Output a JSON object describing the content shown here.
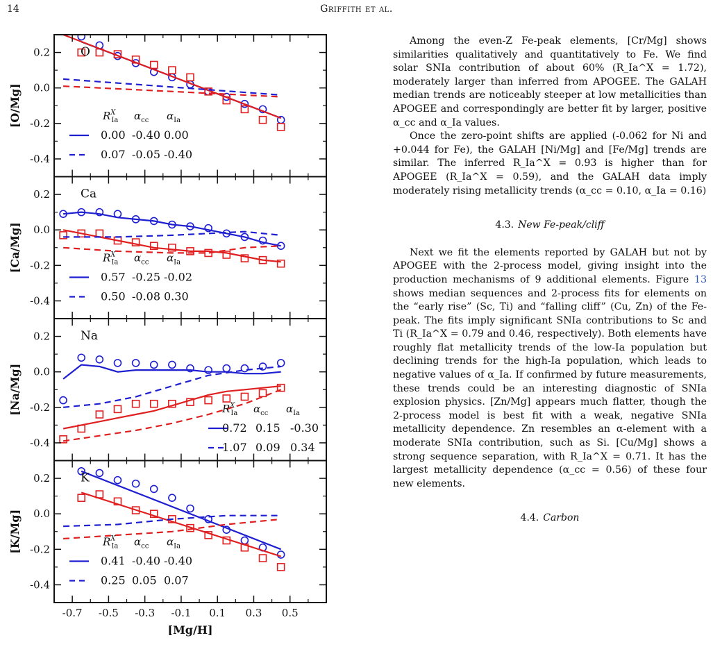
{
  "page": {
    "number": "14",
    "running_head": "Griffith et al."
  },
  "figure": {
    "x_label": "[Mg/H]",
    "x_ticks": [
      "-0.7",
      "-0.5",
      "-0.3",
      "-0.1",
      "0.1",
      "0.3",
      "0.5"
    ],
    "y_ticks": [
      "0.2",
      "0.0",
      "-0.2",
      "-0.4"
    ],
    "legend_header": {
      "r": "R",
      "r_sub": "Ia",
      "r_sup": "X",
      "acc": "α",
      "acc_sub": "cc",
      "aia": "α",
      "aia_sub": "Ia"
    },
    "colors": {
      "high_ia": "#1f1fd2",
      "low_ia": "#e02020"
    }
  },
  "chart_data": [
    {
      "type": "line",
      "element": "O",
      "ylabel": "[O/Mg]",
      "xlim": [
        -0.8,
        0.7
      ],
      "ylim": [
        -0.5,
        0.3
      ],
      "legend": [
        {
          "style": "solid",
          "r": "0.00",
          "acc": "-0.40",
          "aia": "0.00"
        },
        {
          "style": "dashed",
          "r": "0.07",
          "acc": "-0.05",
          "aia": "-0.40"
        }
      ],
      "series": [
        {
          "name": "high-Ia median",
          "marker": "circle",
          "color": "blue",
          "x": [
            -0.65,
            -0.55,
            -0.45,
            -0.35,
            -0.25,
            -0.15,
            -0.05,
            0.05,
            0.15,
            0.25,
            0.35,
            0.45
          ],
          "y": [
            0.29,
            0.24,
            0.18,
            0.14,
            0.09,
            0.06,
            0.02,
            -0.02,
            -0.05,
            -0.09,
            -0.12,
            -0.18
          ]
        },
        {
          "name": "low-Ia median",
          "marker": "square",
          "color": "red",
          "x": [
            -0.65,
            -0.55,
            -0.45,
            -0.35,
            -0.25,
            -0.15,
            -0.05,
            0.05,
            0.15,
            0.25,
            0.35,
            0.45
          ],
          "y": [
            0.2,
            0.2,
            0.19,
            0.16,
            0.13,
            0.1,
            0.06,
            -0.02,
            -0.07,
            -0.12,
            -0.18,
            -0.22
          ]
        },
        {
          "name": "high-Ia fit solid",
          "line": "solid",
          "color": "blue",
          "x": [
            -0.65,
            0.45
          ],
          "y": [
            0.26,
            -0.17
          ]
        },
        {
          "name": "low-Ia fit solid",
          "line": "solid",
          "color": "red",
          "x": [
            -0.75,
            0.45
          ],
          "y": [
            0.3,
            -0.17
          ]
        },
        {
          "name": "high-Ia fit dashed",
          "line": "dashed",
          "color": "blue",
          "x": [
            -0.75,
            0.45
          ],
          "y": [
            0.05,
            -0.04
          ]
        },
        {
          "name": "low-Ia fit dashed",
          "line": "dashed",
          "color": "red",
          "x": [
            -0.75,
            0.45
          ],
          "y": [
            0.01,
            -0.05
          ]
        }
      ]
    },
    {
      "type": "line",
      "element": "Ca",
      "ylabel": "[Ca/Mg]",
      "xlim": [
        -0.8,
        0.7
      ],
      "ylim": [
        -0.5,
        0.3
      ],
      "legend": [
        {
          "style": "solid",
          "r": "0.57",
          "acc": "-0.25",
          "aia": "-0.02"
        },
        {
          "style": "dashed",
          "r": "0.50",
          "acc": "-0.08",
          "aia": "0.30"
        }
      ],
      "series": [
        {
          "name": "high-Ia median",
          "marker": "circle",
          "color": "blue",
          "x": [
            -0.75,
            -0.65,
            -0.55,
            -0.45,
            -0.35,
            -0.25,
            -0.15,
            -0.05,
            0.05,
            0.15,
            0.25,
            0.35,
            0.45
          ],
          "y": [
            0.09,
            0.1,
            0.1,
            0.09,
            0.06,
            0.05,
            0.03,
            0.02,
            0.01,
            -0.02,
            -0.04,
            -0.06,
            -0.09
          ]
        },
        {
          "name": "low-Ia median",
          "marker": "square",
          "color": "red",
          "x": [
            -0.75,
            -0.65,
            -0.55,
            -0.45,
            -0.35,
            -0.25,
            -0.15,
            -0.05,
            0.05,
            0.15,
            0.25,
            0.35,
            0.45
          ],
          "y": [
            -0.03,
            -0.02,
            -0.02,
            -0.06,
            -0.07,
            -0.09,
            -0.1,
            -0.12,
            -0.13,
            -0.14,
            -0.16,
            -0.17,
            -0.19
          ]
        },
        {
          "name": "high-Ia fit solid",
          "line": "solid",
          "color": "blue",
          "x": [
            -0.75,
            -0.65,
            -0.55,
            -0.45,
            -0.35,
            -0.25,
            -0.15,
            -0.05,
            0.05,
            0.15,
            0.25,
            0.35,
            0.45
          ],
          "y": [
            0.09,
            0.1,
            0.09,
            0.07,
            0.06,
            0.05,
            0.03,
            0.02,
            0.0,
            -0.02,
            -0.04,
            -0.07,
            -0.09
          ]
        },
        {
          "name": "low-Ia fit solid",
          "line": "solid",
          "color": "red",
          "x": [
            -0.75,
            -0.65,
            -0.55,
            -0.45,
            -0.35,
            -0.25,
            -0.15,
            -0.05,
            0.05,
            0.15,
            0.25,
            0.35,
            0.45
          ],
          "y": [
            0.0,
            -0.02,
            -0.04,
            -0.06,
            -0.08,
            -0.1,
            -0.11,
            -0.12,
            -0.12,
            -0.13,
            -0.15,
            -0.17,
            -0.18
          ]
        },
        {
          "name": "high-Ia fit dashed",
          "line": "dashed",
          "color": "blue",
          "x": [
            -0.75,
            -0.45,
            -0.15,
            0.05,
            0.25,
            0.45
          ],
          "y": [
            -0.04,
            -0.04,
            -0.03,
            -0.02,
            -0.01,
            -0.03
          ]
        },
        {
          "name": "low-Ia fit dashed",
          "line": "dashed",
          "color": "red",
          "x": [
            -0.75,
            -0.45,
            -0.15,
            0.05,
            0.25,
            0.45
          ],
          "y": [
            -0.1,
            -0.12,
            -0.13,
            -0.13,
            -0.1,
            -0.09
          ]
        }
      ]
    },
    {
      "type": "line",
      "element": "Na",
      "ylabel": "[Na/Mg]",
      "xlim": [
        -0.8,
        0.7
      ],
      "ylim": [
        -0.5,
        0.3
      ],
      "legend": [
        {
          "style": "solid",
          "r": "0.72",
          "acc": "0.15",
          "aia": "-0.30"
        },
        {
          "style": "dashed",
          "r": "1.07",
          "acc": "0.09",
          "aia": "0.34"
        }
      ],
      "series": [
        {
          "name": "high-Ia median",
          "marker": "circle",
          "color": "blue",
          "x": [
            -0.75,
            -0.65,
            -0.55,
            -0.45,
            -0.35,
            -0.25,
            -0.15,
            -0.05,
            0.05,
            0.15,
            0.25,
            0.35,
            0.45
          ],
          "y": [
            -0.16,
            0.08,
            0.07,
            0.05,
            0.05,
            0.04,
            0.04,
            0.02,
            0.01,
            0.02,
            0.02,
            0.03,
            0.05
          ]
        },
        {
          "name": "low-Ia median",
          "marker": "square",
          "color": "red",
          "x": [
            -0.75,
            -0.65,
            -0.55,
            -0.45,
            -0.35,
            -0.25,
            -0.15,
            -0.05,
            0.05,
            0.15,
            0.25,
            0.35,
            0.45
          ],
          "y": [
            -0.38,
            -0.32,
            -0.24,
            -0.21,
            -0.18,
            -0.18,
            -0.18,
            -0.17,
            -0.16,
            -0.15,
            -0.14,
            -0.12,
            -0.09
          ]
        },
        {
          "name": "high-Ia fit solid",
          "line": "solid",
          "color": "blue",
          "x": [
            -0.75,
            -0.65,
            -0.55,
            -0.45,
            -0.35,
            -0.25,
            -0.15,
            -0.05,
            0.05,
            0.15,
            0.25,
            0.35,
            0.45
          ],
          "y": [
            -0.04,
            0.04,
            0.03,
            0.0,
            0.01,
            0.01,
            0.01,
            0.01,
            0.0,
            0.0,
            -0.01,
            -0.01,
            0.0
          ]
        },
        {
          "name": "low-Ia fit solid",
          "line": "solid",
          "color": "red",
          "x": [
            -0.75,
            -0.65,
            -0.55,
            -0.45,
            -0.35,
            -0.25,
            -0.15,
            -0.05,
            0.05,
            0.15,
            0.25,
            0.35,
            0.45
          ],
          "y": [
            -0.32,
            -0.3,
            -0.28,
            -0.26,
            -0.24,
            -0.22,
            -0.19,
            -0.16,
            -0.13,
            -0.11,
            -0.1,
            -0.09,
            -0.08
          ]
        },
        {
          "name": "high-Ia fit dashed",
          "line": "dashed",
          "color": "blue",
          "x": [
            -0.75,
            -0.55,
            -0.35,
            -0.15,
            0.05,
            0.25,
            0.45
          ],
          "y": [
            -0.2,
            -0.18,
            -0.14,
            -0.08,
            -0.02,
            0.01,
            0.03
          ]
        },
        {
          "name": "low-Ia fit dashed",
          "line": "dashed",
          "color": "red",
          "x": [
            -0.75,
            -0.55,
            -0.35,
            -0.15,
            0.05,
            0.25,
            0.45
          ],
          "y": [
            -0.39,
            -0.36,
            -0.33,
            -0.29,
            -0.24,
            -0.18,
            -0.1
          ]
        }
      ]
    },
    {
      "type": "line",
      "element": "K",
      "ylabel": "[K/Mg]",
      "xlim": [
        -0.8,
        0.7
      ],
      "ylim": [
        -0.5,
        0.3
      ],
      "legend": [
        {
          "style": "solid",
          "r": "0.41",
          "acc": "-0.40",
          "aia": "-0.40"
        },
        {
          "style": "dashed",
          "r": "0.25",
          "acc": "0.05",
          "aia": "0.07"
        }
      ],
      "series": [
        {
          "name": "high-Ia median",
          "marker": "circle",
          "color": "blue",
          "x": [
            -0.65,
            -0.55,
            -0.45,
            -0.35,
            -0.25,
            -0.15,
            -0.05,
            0.05,
            0.15,
            0.25,
            0.35,
            0.45
          ],
          "y": [
            0.24,
            0.23,
            0.19,
            0.17,
            0.14,
            0.09,
            0.03,
            -0.03,
            -0.09,
            -0.15,
            -0.19,
            -0.23
          ]
        },
        {
          "name": "low-Ia median",
          "marker": "square",
          "color": "red",
          "x": [
            -0.65,
            -0.55,
            -0.45,
            -0.35,
            -0.25,
            -0.15,
            -0.05,
            0.05,
            0.15,
            0.25,
            0.35,
            0.45
          ],
          "y": [
            0.09,
            0.11,
            0.07,
            0.02,
            0.0,
            -0.03,
            -0.08,
            -0.12,
            -0.15,
            -0.19,
            -0.25,
            -0.3
          ]
        },
        {
          "name": "high-Ia fit solid",
          "line": "solid",
          "color": "blue",
          "x": [
            -0.65,
            0.45
          ],
          "y": [
            0.24,
            -0.2
          ]
        },
        {
          "name": "low-Ia fit solid",
          "line": "solid",
          "color": "red",
          "x": [
            -0.65,
            0.45
          ],
          "y": [
            0.12,
            -0.24
          ]
        },
        {
          "name": "high-Ia fit dashed",
          "line": "dashed",
          "color": "blue",
          "x": [
            -0.75,
            -0.45,
            -0.15,
            0.15,
            0.45
          ],
          "y": [
            -0.07,
            -0.06,
            -0.03,
            -0.01,
            -0.01
          ]
        },
        {
          "name": "low-Ia fit dashed",
          "line": "dashed",
          "color": "red",
          "x": [
            -0.75,
            -0.45,
            -0.15,
            0.15,
            0.45
          ],
          "y": [
            -0.14,
            -0.12,
            -0.1,
            -0.06,
            -0.03
          ]
        }
      ]
    }
  ],
  "text": {
    "p1": "Among the even-Z Fe-peak elements, [Cr/Mg] shows similarities qualitatively and quantitatively to Fe. We find solar SNIa contribution of about 60% (R_Ia^X = 1.72), moderately larger than inferred from APOGEE. The GALAH median trends are noticeably steeper at low metallicities than APOGEE and correspondingly are better fit by larger, positive α_cc and α_Ia values.",
    "p2": "Once the zero-point shifts are applied (-0.062 for Ni and +0.044 for Fe), the GALAH [Ni/Mg] and [Fe/Mg] trends are similar. The inferred R_Ia^X = 0.93 is higher than for APOGEE (R_Ia^X = 0.59), and the GALAH data imply moderately rising metallicity trends (α_cc = 0.10, α_Ia = 0.16)",
    "section_4_3_num": "4.3.",
    "section_4_3_title": "New Fe-peak/cliff",
    "p3_a": "Next we fit the elements reported by GALAH but not by APOGEE with the 2-process model, giving insight into the production mechanisms of 9 additional elements. Figure ",
    "p3_fig": "13",
    "p3_b": " shows median sequences and 2-process fits for elements on the “early rise” (Sc, Ti) and “falling cliff” (Cu, Zn) of the Fe-peak. The fits imply significant SNIa contributions to Sc and Ti (R_Ia^X = 0.79 and 0.46, respectively). Both elements have roughly flat metallicity trends of the low-Ia population but declining trends for the high-Ia population, which leads to negative values of α_Ia. If confirmed by future measurements, these trends could be an interesting diagnostic of SNIa explosion physics. [Zn/Mg] appears much flatter, though the 2-process model is best fit with a weak, negative SNIa metallicity dependence. Zn resembles an α-element with a moderate SNIa contribution, such as Si. [Cu/Mg] shows a strong sequence separation, with R_Ia^X = 0.71. It has the largest metallicity dependence (α_cc = 0.56) of these four new elements.",
    "section_4_4_num": "4.4.",
    "section_4_4_title": "Carbon"
  }
}
